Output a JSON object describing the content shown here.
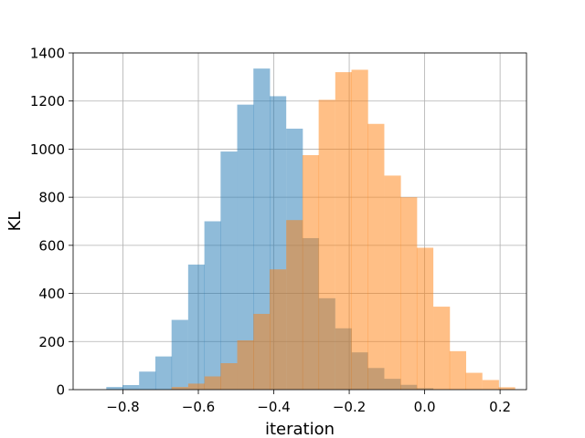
{
  "chart_data": {
    "type": "bar",
    "title": "",
    "xlabel": "iteration",
    "ylabel": "KL",
    "xlim": [
      -0.932,
      0.27
    ],
    "ylim": [
      0,
      1400
    ],
    "grid": true,
    "bin_width": 0.0433,
    "x_ticks": [
      -0.8,
      -0.6,
      -0.4,
      -0.2,
      0.0,
      0.2
    ],
    "x_tick_labels": [
      "−0.8",
      "−0.6",
      "−0.4",
      "−0.2",
      "0.0",
      "0.2"
    ],
    "y_ticks": [
      0,
      200,
      400,
      600,
      800,
      1000,
      1200,
      1400
    ],
    "y_tick_labels": [
      "0",
      "200",
      "400",
      "600",
      "800",
      "1000",
      "1200",
      "1400"
    ],
    "series": [
      {
        "color": "#1f77b4",
        "opacity": 0.5,
        "bin_starts": [
          -0.844,
          -0.801,
          -0.757,
          -0.714,
          -0.671,
          -0.627,
          -0.584,
          -0.541,
          -0.497,
          -0.454,
          -0.411,
          -0.367,
          -0.324,
          -0.281,
          -0.237,
          -0.194,
          -0.151,
          -0.107,
          -0.064,
          -0.021
        ],
        "values": [
          11,
          19,
          75,
          138,
          290,
          520,
          700,
          990,
          1185,
          1335,
          1220,
          1085,
          630,
          380,
          255,
          155,
          90,
          45,
          20,
          6
        ]
      },
      {
        "color": "#ff7f0e",
        "opacity": 0.5,
        "bin_starts": [
          -0.671,
          -0.627,
          -0.584,
          -0.541,
          -0.497,
          -0.454,
          -0.411,
          -0.367,
          -0.324,
          -0.281,
          -0.237,
          -0.194,
          -0.151,
          -0.107,
          -0.064,
          -0.021,
          0.023,
          0.066,
          0.109,
          0.153,
          0.196
        ],
        "values": [
          11,
          25,
          55,
          110,
          205,
          315,
          500,
          705,
          975,
          1205,
          1320,
          1330,
          1105,
          890,
          800,
          590,
          345,
          160,
          70,
          40,
          10
        ]
      }
    ]
  }
}
